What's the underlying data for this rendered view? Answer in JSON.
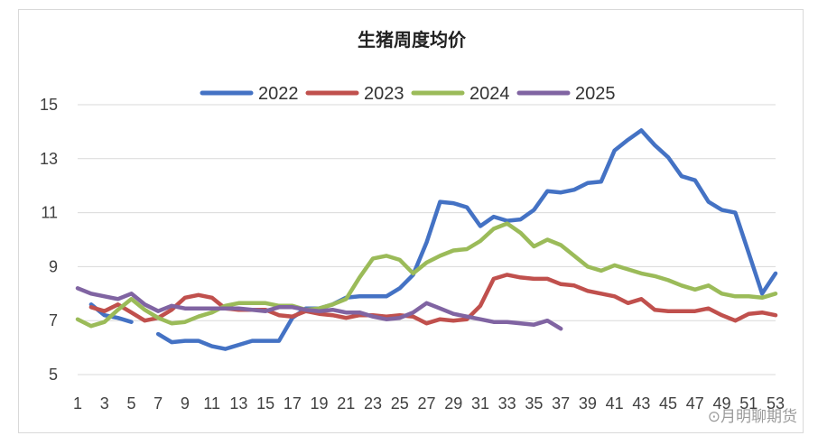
{
  "chart_data": {
    "type": "line",
    "title": "生猪周度均价",
    "xlabel": "",
    "ylabel": "",
    "ylim": [
      5,
      15
    ],
    "yticks": [
      5,
      7,
      9,
      11,
      13,
      15
    ],
    "xlim": [
      1,
      53
    ],
    "xticks": [
      1,
      3,
      5,
      7,
      9,
      11,
      13,
      15,
      17,
      19,
      21,
      23,
      25,
      27,
      29,
      31,
      33,
      35,
      37,
      39,
      41,
      43,
      45,
      47,
      49,
      51,
      53
    ],
    "grid": "horizontal",
    "legend_position": "top",
    "series": [
      {
        "name": "2022",
        "color": "#4472C4",
        "points": [
          [
            2,
            7.6
          ],
          [
            3,
            7.2
          ],
          [
            4,
            7.1
          ],
          [
            5,
            6.95
          ],
          [
            7,
            6.5
          ],
          [
            8,
            6.2
          ],
          [
            9,
            6.25
          ],
          [
            10,
            6.25
          ],
          [
            11,
            6.05
          ],
          [
            12,
            5.95
          ],
          [
            13,
            6.1
          ],
          [
            14,
            6.25
          ],
          [
            15,
            6.25
          ],
          [
            16,
            6.25
          ],
          [
            17,
            7.1
          ],
          [
            18,
            7.45
          ],
          [
            19,
            7.45
          ],
          [
            20,
            7.6
          ],
          [
            21,
            7.85
          ],
          [
            22,
            7.9
          ],
          [
            23,
            7.9
          ],
          [
            24,
            7.9
          ],
          [
            25,
            8.2
          ],
          [
            26,
            8.7
          ],
          [
            27,
            9.9
          ],
          [
            28,
            11.4
          ],
          [
            29,
            11.35
          ],
          [
            30,
            11.2
          ],
          [
            31,
            10.5
          ],
          [
            32,
            10.85
          ],
          [
            33,
            10.7
          ],
          [
            34,
            10.75
          ],
          [
            35,
            11.1
          ],
          [
            36,
            11.8
          ],
          [
            37,
            11.75
          ],
          [
            38,
            11.85
          ],
          [
            39,
            12.1
          ],
          [
            40,
            12.15
          ],
          [
            41,
            13.3
          ],
          [
            42,
            13.7
          ],
          [
            43,
            14.05
          ],
          [
            44,
            13.5
          ],
          [
            45,
            13.05
          ],
          [
            46,
            12.35
          ],
          [
            47,
            12.2
          ],
          [
            48,
            11.4
          ],
          [
            49,
            11.1
          ],
          [
            50,
            11.0
          ],
          [
            51,
            9.5
          ],
          [
            52,
            8.0
          ],
          [
            53,
            8.75
          ]
        ]
      },
      {
        "name": "2023",
        "color": "#C0504D",
        "points": [
          [
            2,
            7.5
          ],
          [
            3,
            7.35
          ],
          [
            4,
            7.6
          ],
          [
            5,
            7.3
          ],
          [
            6,
            7.0
          ],
          [
            7,
            7.1
          ],
          [
            8,
            7.4
          ],
          [
            9,
            7.85
          ],
          [
            10,
            7.95
          ],
          [
            11,
            7.85
          ],
          [
            12,
            7.45
          ],
          [
            13,
            7.4
          ],
          [
            14,
            7.4
          ],
          [
            15,
            7.4
          ],
          [
            16,
            7.2
          ],
          [
            17,
            7.15
          ],
          [
            18,
            7.35
          ],
          [
            19,
            7.25
          ],
          [
            20,
            7.2
          ],
          [
            21,
            7.1
          ],
          [
            22,
            7.2
          ],
          [
            23,
            7.2
          ],
          [
            24,
            7.15
          ],
          [
            25,
            7.2
          ],
          [
            26,
            7.15
          ],
          [
            27,
            6.9
          ],
          [
            28,
            7.05
          ],
          [
            29,
            7.0
          ],
          [
            30,
            7.05
          ],
          [
            31,
            7.55
          ],
          [
            32,
            8.55
          ],
          [
            33,
            8.7
          ],
          [
            34,
            8.6
          ],
          [
            35,
            8.55
          ],
          [
            36,
            8.55
          ],
          [
            37,
            8.35
          ],
          [
            38,
            8.3
          ],
          [
            39,
            8.1
          ],
          [
            40,
            8.0
          ],
          [
            41,
            7.9
          ],
          [
            42,
            7.65
          ],
          [
            43,
            7.8
          ],
          [
            44,
            7.4
          ],
          [
            45,
            7.35
          ],
          [
            46,
            7.35
          ],
          [
            47,
            7.35
          ],
          [
            48,
            7.45
          ],
          [
            49,
            7.2
          ],
          [
            50,
            7.0
          ],
          [
            51,
            7.25
          ],
          [
            52,
            7.3
          ],
          [
            53,
            7.2
          ]
        ]
      },
      {
        "name": "2024",
        "color": "#9BBB59",
        "points": [
          [
            1,
            7.05
          ],
          [
            2,
            6.8
          ],
          [
            3,
            6.95
          ],
          [
            4,
            7.4
          ],
          [
            5,
            7.8
          ],
          [
            6,
            7.4
          ],
          [
            7,
            7.1
          ],
          [
            8,
            6.9
          ],
          [
            9,
            6.95
          ],
          [
            10,
            7.15
          ],
          [
            11,
            7.3
          ],
          [
            12,
            7.55
          ],
          [
            13,
            7.65
          ],
          [
            14,
            7.65
          ],
          [
            15,
            7.65
          ],
          [
            16,
            7.55
          ],
          [
            17,
            7.55
          ],
          [
            18,
            7.4
          ],
          [
            19,
            7.45
          ],
          [
            20,
            7.6
          ],
          [
            21,
            7.8
          ],
          [
            22,
            8.6
          ],
          [
            23,
            9.3
          ],
          [
            24,
            9.4
          ],
          [
            25,
            9.25
          ],
          [
            26,
            8.75
          ],
          [
            27,
            9.15
          ],
          [
            28,
            9.4
          ],
          [
            29,
            9.6
          ],
          [
            30,
            9.65
          ],
          [
            31,
            9.95
          ],
          [
            32,
            10.4
          ],
          [
            33,
            10.6
          ],
          [
            34,
            10.25
          ],
          [
            35,
            9.75
          ],
          [
            36,
            10.0
          ],
          [
            37,
            9.8
          ],
          [
            38,
            9.4
          ],
          [
            39,
            9.0
          ],
          [
            40,
            8.85
          ],
          [
            41,
            9.05
          ],
          [
            42,
            8.9
          ],
          [
            43,
            8.75
          ],
          [
            44,
            8.65
          ],
          [
            45,
            8.5
          ],
          [
            46,
            8.3
          ],
          [
            47,
            8.15
          ],
          [
            48,
            8.3
          ],
          [
            49,
            8.0
          ],
          [
            50,
            7.9
          ],
          [
            51,
            7.9
          ],
          [
            52,
            7.85
          ],
          [
            53,
            8.0
          ]
        ]
      },
      {
        "name": "2025",
        "color": "#8064A2",
        "points": [
          [
            1,
            8.2
          ],
          [
            2,
            8.0
          ],
          [
            3,
            7.9
          ],
          [
            4,
            7.8
          ],
          [
            5,
            8.0
          ],
          [
            6,
            7.6
          ],
          [
            7,
            7.35
          ],
          [
            8,
            7.55
          ],
          [
            9,
            7.45
          ],
          [
            10,
            7.45
          ],
          [
            11,
            7.45
          ],
          [
            12,
            7.45
          ],
          [
            13,
            7.45
          ],
          [
            14,
            7.4
          ],
          [
            15,
            7.35
          ],
          [
            16,
            7.5
          ],
          [
            17,
            7.5
          ],
          [
            18,
            7.4
          ],
          [
            19,
            7.35
          ],
          [
            20,
            7.4
          ],
          [
            21,
            7.3
          ],
          [
            22,
            7.3
          ],
          [
            23,
            7.15
          ],
          [
            24,
            7.05
          ],
          [
            25,
            7.1
          ],
          [
            26,
            7.3
          ],
          [
            27,
            7.65
          ],
          [
            28,
            7.45
          ],
          [
            29,
            7.25
          ],
          [
            30,
            7.15
          ],
          [
            31,
            7.05
          ],
          [
            32,
            6.95
          ],
          [
            33,
            6.95
          ],
          [
            34,
            6.9
          ],
          [
            35,
            6.85
          ],
          [
            36,
            7.0
          ],
          [
            37,
            6.7
          ]
        ]
      }
    ]
  },
  "watermark": "⊙月明聊期货"
}
